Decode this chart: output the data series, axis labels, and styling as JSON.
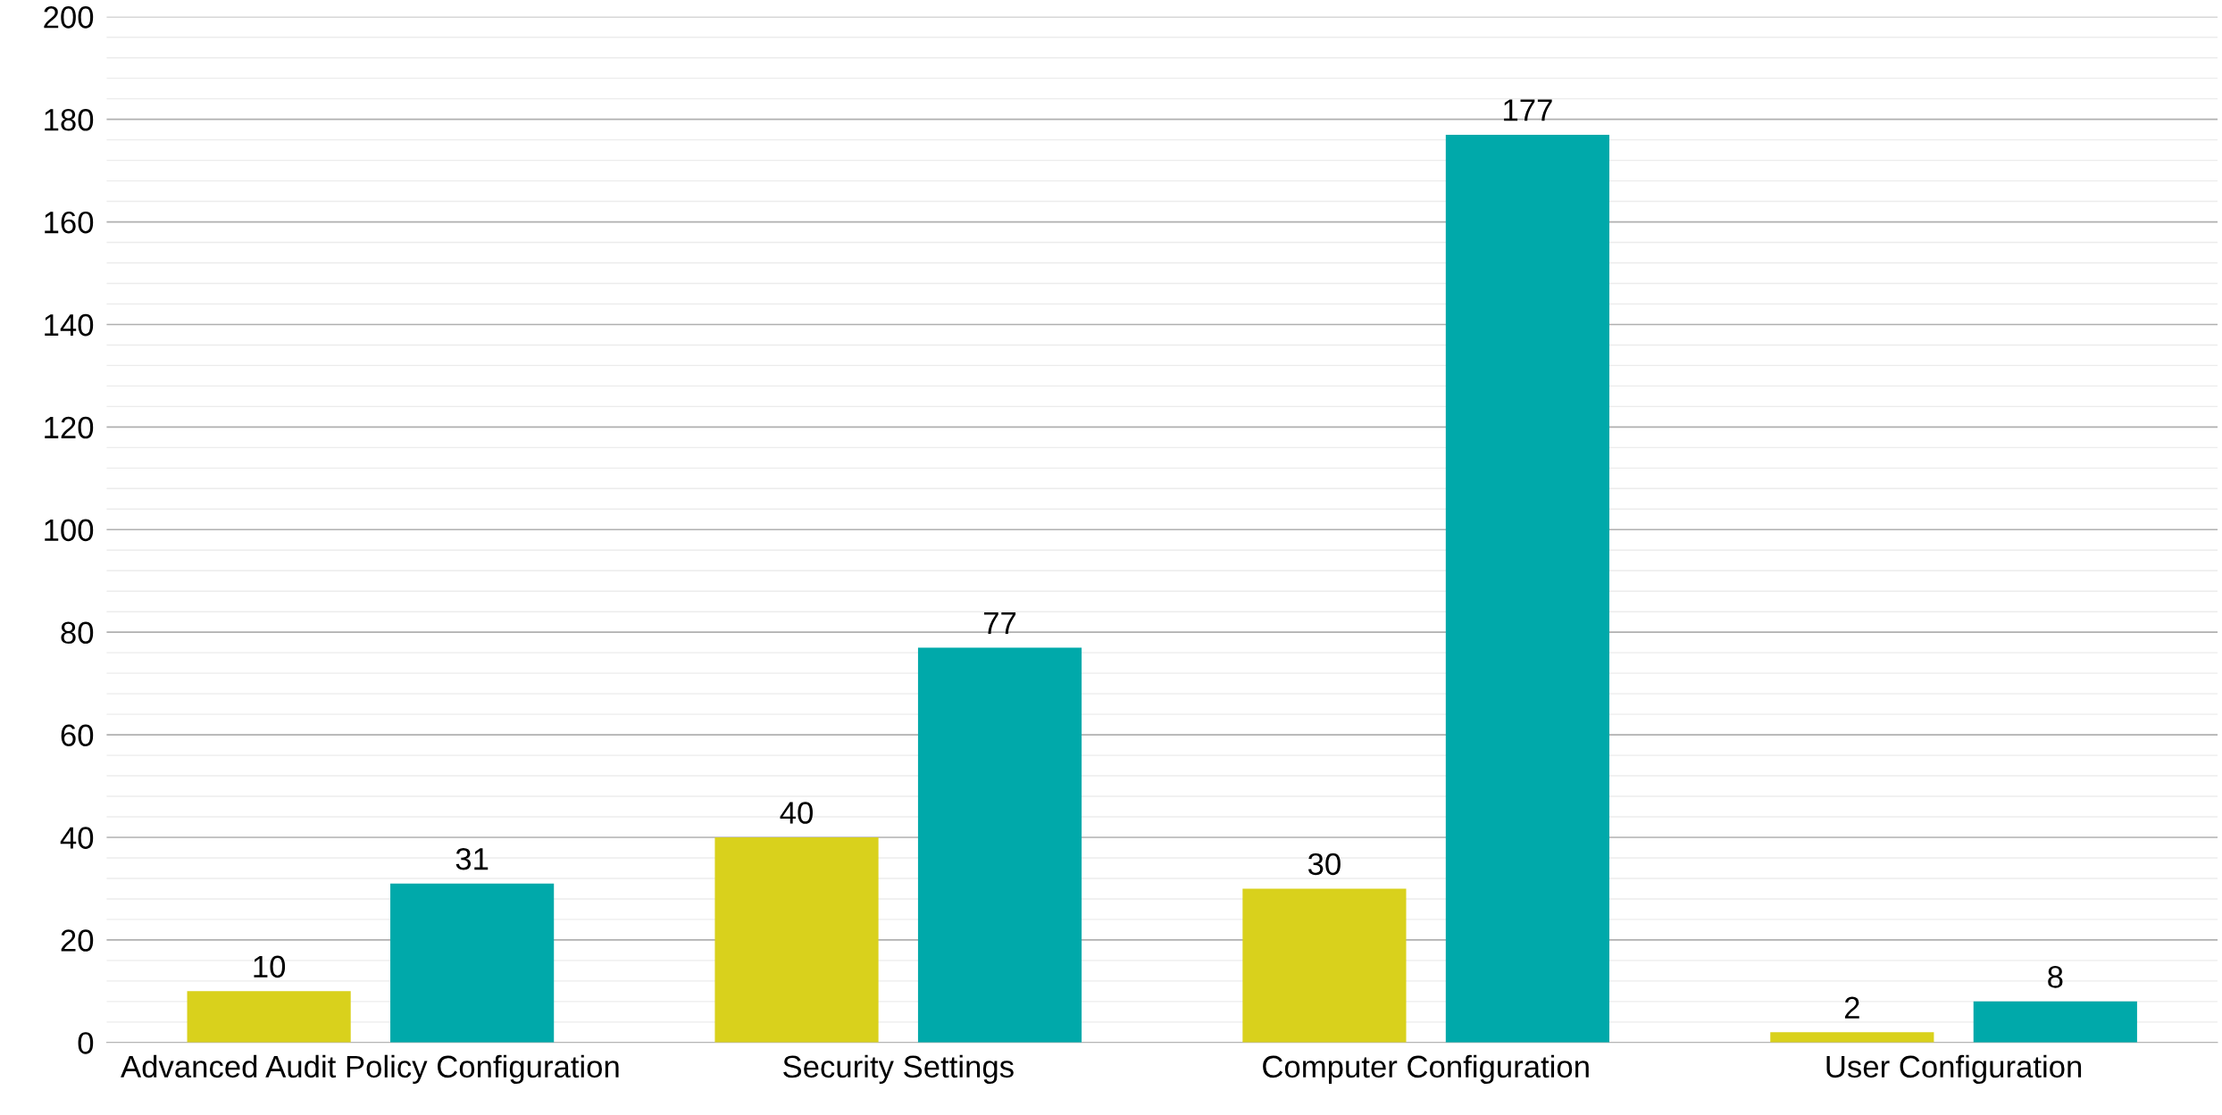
{
  "chart_data": {
    "type": "bar",
    "categories": [
      "Advanced Audit Policy Configuration",
      "Security Settings",
      "Computer Configuration",
      "User Configuration"
    ],
    "series": [
      {
        "color": "#d9d11c",
        "values": [
          10,
          40,
          30,
          2
        ]
      },
      {
        "color": "#00a9aa",
        "values": [
          31,
          77,
          177,
          8
        ]
      }
    ],
    "ylim": [
      0,
      200
    ],
    "yticks": [
      0,
      20,
      40,
      60,
      80,
      100,
      120,
      140,
      160,
      180,
      200
    ],
    "grid": "y",
    "data_labels": true,
    "legend": false
  }
}
